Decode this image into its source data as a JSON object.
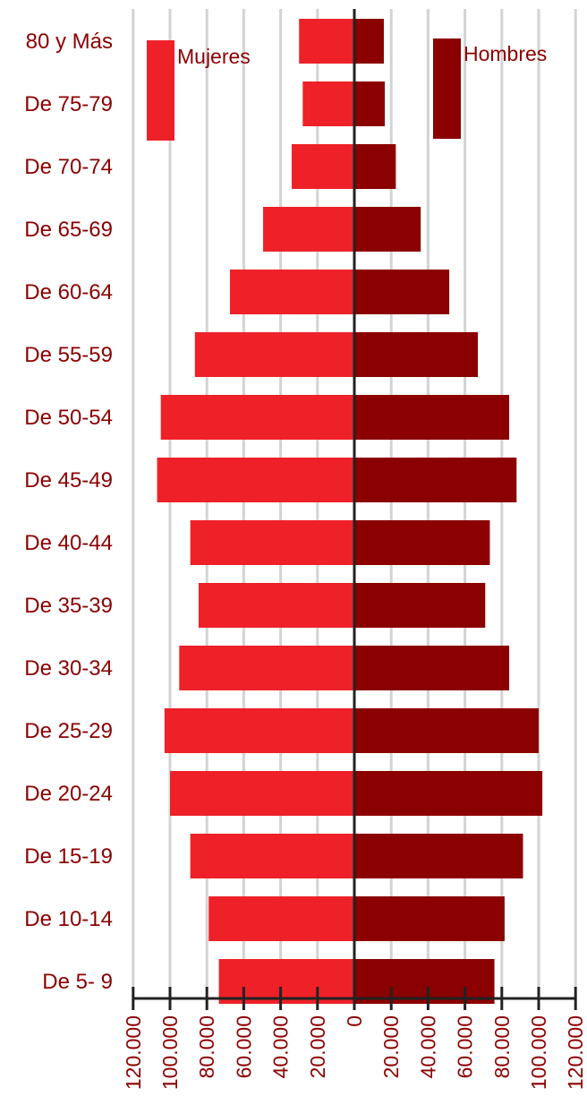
{
  "colors": {
    "mujeres": "#ee2128",
    "hombres": "#8b0000",
    "axis": "#222222",
    "grid": "#d3d3d3",
    "text": "#8b0000"
  },
  "chart_data": {
    "type": "bar",
    "orientation": "horizontal",
    "title": "",
    "categories": [
      "80 y Más",
      "De 75-79",
      "De 70-74",
      "De 65-69",
      "De 60-64",
      "De 55-59",
      "De 50-54",
      "De 45-49",
      "De 40-44",
      "De 35-39",
      "De 30-34",
      "De 25-29",
      "De 20-24",
      "De 15-19",
      "De 10-14",
      "De 5- 9"
    ],
    "series": [
      {
        "name": "Mujeres",
        "side": "left",
        "values": [
          30000,
          28000,
          34000,
          49500,
          67500,
          86500,
          105000,
          107000,
          89000,
          84500,
          95000,
          103000,
          100000,
          89000,
          79000,
          73500
        ]
      },
      {
        "name": "Hombres",
        "side": "right",
        "values": [
          16000,
          16500,
          22500,
          36000,
          51500,
          67000,
          84000,
          88000,
          73500,
          71000,
          84000,
          100000,
          102000,
          91500,
          81500,
          76000
        ]
      }
    ],
    "xlim": [
      -120000,
      120000
    ],
    "ticks": [
      -120000,
      -100000,
      -80000,
      -60000,
      -40000,
      -20000,
      0,
      20000,
      40000,
      60000,
      80000,
      100000,
      120000
    ],
    "tick_labels": [
      "120.000",
      "100.000",
      "80.000",
      "60.000",
      "40.000",
      "20.000",
      "0",
      "20.000",
      "40.000",
      "60.000",
      "80.000",
      "100.000",
      "120.000"
    ],
    "legend": {
      "mujeres": "Mujeres",
      "hombres": "Hombres"
    },
    "grid": true
  }
}
